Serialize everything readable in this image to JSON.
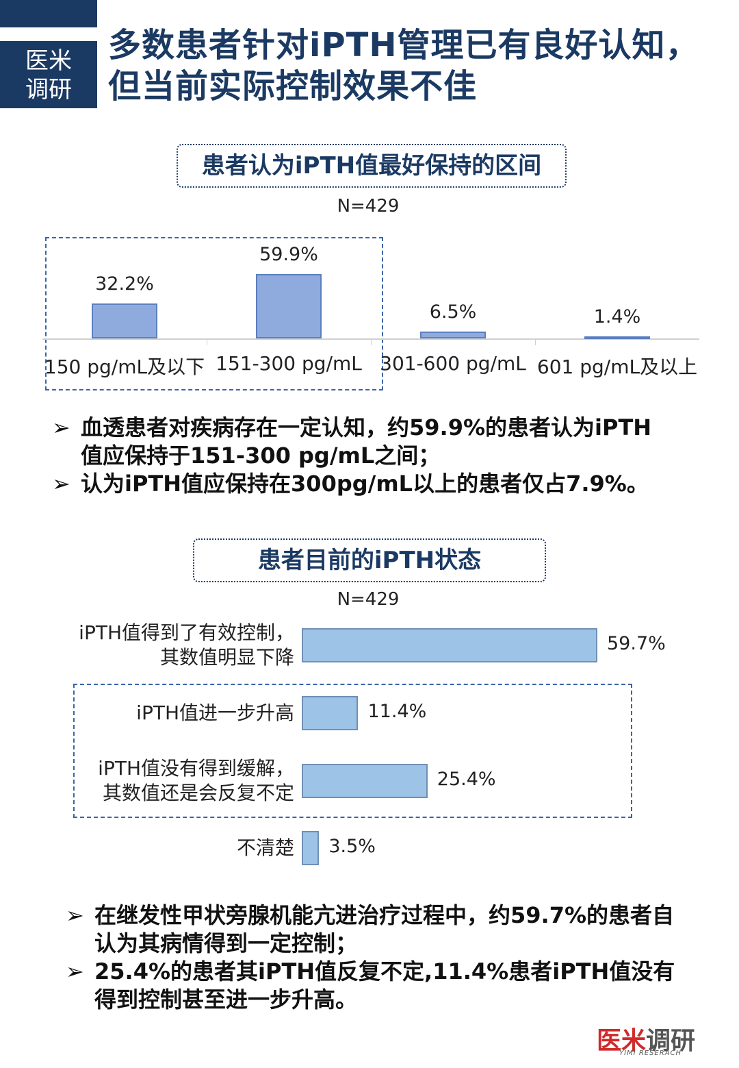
{
  "badge": {
    "line1": "医米",
    "line2": "调研"
  },
  "title": {
    "line1": "多数患者针对iPTH管理已有良好认知，",
    "line2": "但当前实际控制效果不佳"
  },
  "chart_data": [
    {
      "type": "bar",
      "title": "患者认为iPTH值最好保持的区间",
      "subtitle": "N=429",
      "categories": [
        "150 pg/mL及以下",
        "151-300 pg/mL",
        "301-600 pg/mL",
        "601 pg/mL及以上"
      ],
      "values": [
        32.2,
        59.9,
        6.5,
        1.4
      ],
      "value_labels": [
        "32.2%",
        "59.9%",
        "6.5%",
        "1.4%"
      ],
      "ylim": [
        0,
        70
      ],
      "highlight": "dashed box around first two categories"
    },
    {
      "type": "bar",
      "orientation": "horizontal",
      "title": "患者目前的iPTH状态",
      "subtitle": "N=429",
      "categories": [
        [
          "iPTH值得到了有效控制，",
          "其数值明显下降"
        ],
        [
          "iPTH值进一步升高"
        ],
        [
          "iPTH值没有得到缓解，",
          "其数值还是会反复不定"
        ],
        [
          "不清楚"
        ]
      ],
      "values": [
        59.7,
        11.4,
        25.4,
        3.5
      ],
      "value_labels": [
        "59.7%",
        "11.4%",
        "25.4%",
        "3.5%"
      ],
      "xlim": [
        0,
        60
      ],
      "highlight": "dashed box around second and third categories"
    }
  ],
  "bullets1": [
    [
      "血透患者对疾病存在一定认知，约59.9%的患者认为iPTH",
      "值应保持于151-300 pg/mL之间；"
    ],
    [
      "认为iPTH值应保持在300pg/mL以上的患者仅占7.9%。"
    ]
  ],
  "bullets2": [
    [
      "在继发性甲状旁腺机能亢进治疗过程中，约59.7%的患者自",
      "认为其病情得到一定控制；"
    ],
    [
      "25.4%的患者其iPTH值反复不定,11.4%患者iPTH值没有",
      "得到控制甚至进一步升高。"
    ]
  ],
  "bullet_marker": "➢",
  "logo": {
    "main": "医米",
    "accent": "调研",
    "sub": "YIMI RESERACH"
  },
  "colors": {
    "navy": "#1b3a63",
    "bar_vertical": "#8faadc",
    "bar_horizontal": "#9dc3e6",
    "logo_red": "#d02a2a"
  }
}
